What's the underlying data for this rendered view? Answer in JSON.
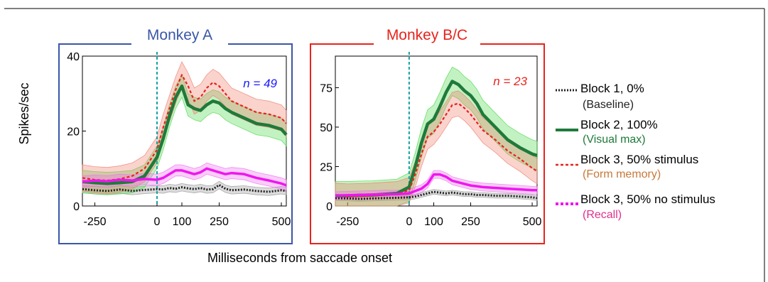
{
  "figure": {
    "ylabel": "Spikes/sec",
    "xlabel": "Milliseconds from saccade onset"
  },
  "colors": {
    "baseline": "#222222",
    "visual_max": "#1f7a3a",
    "form_memory": "#e8231c",
    "recall": "#ee17ee",
    "monkey_a": "#1a1aff",
    "monkey_b": "#e8231c",
    "panel_a_border": "#3a57a8",
    "panel_b_border": "#e8231c",
    "onset_line": "#16a3a3"
  },
  "legend": {
    "items": [
      {
        "label": "Block 1, 0%",
        "sublabel": "(Baseline)",
        "sub_color": "#222222"
      },
      {
        "label": "Block 2, 100%",
        "sublabel": "(Visual max)",
        "sub_color": "#1f7a3a"
      },
      {
        "label": "Block 3, 50% stimulus",
        "sublabel": "(Form memory)",
        "sub_color": "#c8783a"
      },
      {
        "label": "Block 3, 50% no stimulus",
        "sublabel": "(Recall)",
        "sub_color": "#e0308a"
      }
    ]
  },
  "chart_data": [
    {
      "type": "line",
      "title": "Monkey A",
      "annotation": "n = 49",
      "ylabel": "Spikes/sec",
      "xlabel": "Milliseconds from saccade onset",
      "xlim": [
        -300,
        520
      ],
      "ylim": [
        0,
        40
      ],
      "xticks": [
        -250,
        0,
        100,
        250,
        500
      ],
      "yticks": [
        0,
        20,
        40
      ],
      "x": [
        -300,
        -250,
        -200,
        -150,
        -100,
        -50,
        0,
        25,
        50,
        75,
        100,
        125,
        150,
        175,
        200,
        225,
        250,
        275,
        300,
        350,
        400,
        450,
        500,
        520
      ],
      "series": [
        {
          "name": "Block 1, 0%",
          "values": [
            4.5,
            4.2,
            4.0,
            4.4,
            4.0,
            4.3,
            4.5,
            4.4,
            4.8,
            4.6,
            5.0,
            4.7,
            4.5,
            4.8,
            4.4,
            4.5,
            5.6,
            4.6,
            4.2,
            4.4,
            4.0,
            3.8,
            4.2,
            4.0
          ],
          "band": 1.0
        },
        {
          "name": "Block 2, 100%",
          "values": [
            6.5,
            6.2,
            6.0,
            6.2,
            6.5,
            8.0,
            13.0,
            18.0,
            24.0,
            29.0,
            32.0,
            27.0,
            26.0,
            25.5,
            27.0,
            28.0,
            27.5,
            26.0,
            25.0,
            23.5,
            22.0,
            21.5,
            20.5,
            19.0
          ],
          "band": 3.0
        },
        {
          "name": "Block 3, 50% stimulus",
          "values": [
            7.5,
            7.0,
            6.8,
            7.2,
            8.0,
            10.0,
            15.0,
            21.0,
            26.0,
            31.0,
            35.0,
            32.0,
            28.0,
            29.0,
            31.5,
            33.0,
            32.0,
            30.0,
            28.0,
            26.5,
            25.0,
            24.5,
            23.5,
            22.0
          ],
          "band": 3.5
        },
        {
          "name": "Block 3, 50% no stimulus",
          "values": [
            6.5,
            6.8,
            6.6,
            7.0,
            6.8,
            7.2,
            7.0,
            7.5,
            8.5,
            9.5,
            9.5,
            9.0,
            8.5,
            9.0,
            10.0,
            9.5,
            9.0,
            8.5,
            8.8,
            8.5,
            7.5,
            6.8,
            6.0,
            5.5
          ],
          "band": 1.5
        }
      ]
    },
    {
      "type": "line",
      "title": "Monkey B/C",
      "annotation": "n = 23",
      "ylabel": "",
      "xlabel": "Milliseconds from saccade onset",
      "xlim": [
        -300,
        520
      ],
      "ylim": [
        0,
        95
      ],
      "xticks": [
        -250,
        0,
        100,
        250,
        500
      ],
      "yticks": [
        0,
        25,
        50,
        75
      ],
      "x": [
        -300,
        -250,
        -200,
        -150,
        -100,
        -50,
        0,
        25,
        50,
        75,
        100,
        125,
        150,
        175,
        200,
        225,
        250,
        275,
        300,
        350,
        400,
        450,
        500,
        520
      ],
      "series": [
        {
          "name": "Block 1, 0%",
          "values": [
            5.0,
            4.8,
            4.5,
            4.8,
            5.0,
            5.2,
            5.5,
            6.0,
            7.0,
            8.0,
            9.0,
            8.5,
            8.0,
            8.5,
            8.0,
            7.5,
            7.5,
            7.0,
            7.0,
            6.5,
            6.5,
            6.0,
            5.5,
            5.0
          ],
          "band": 1.5
        },
        {
          "name": "Block 2, 100%",
          "values": [
            6.5,
            6.5,
            6.8,
            7.0,
            7.5,
            8.0,
            12.0,
            25.0,
            40.0,
            52.0,
            55.0,
            63.0,
            72.0,
            79.0,
            77.0,
            73.0,
            70.0,
            65.0,
            58.0,
            50.0,
            42.0,
            37.0,
            33.0,
            32.0
          ],
          "band": 9.0
        },
        {
          "name": "Block 3, 50% stimulus",
          "values": [
            6.5,
            6.0,
            6.2,
            6.5,
            7.0,
            7.5,
            10.0,
            20.0,
            33.0,
            44.0,
            47.0,
            52.0,
            58.0,
            64.0,
            65.0,
            62.0,
            58.0,
            53.0,
            48.0,
            42.0,
            35.0,
            30.0,
            24.0,
            22.0
          ],
          "band": 8.0
        },
        {
          "name": "Block 3, 50% no stimulus",
          "values": [
            6.5,
            6.8,
            7.0,
            7.2,
            7.5,
            7.5,
            8.0,
            9.5,
            11.0,
            14.0,
            20.0,
            20.0,
            18.5,
            16.0,
            15.0,
            14.0,
            13.0,
            12.5,
            12.0,
            11.5,
            11.0,
            10.5,
            10.0,
            10.0
          ],
          "band": 2.5
        }
      ]
    }
  ]
}
